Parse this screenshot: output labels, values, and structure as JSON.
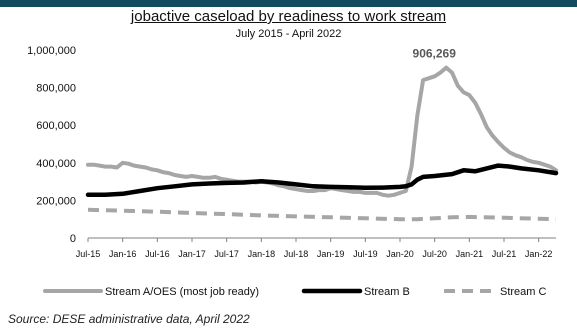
{
  "chart_data": {
    "type": "line",
    "title": "jobactive caseload by readiness to work stream",
    "subtitle": "July 2015 - April 2022",
    "ylim": [
      0,
      1000000
    ],
    "y_ticks": [
      "0",
      "200,000",
      "400,000",
      "600,000",
      "800,000",
      "1,000,000"
    ],
    "y_tick_values": [
      0,
      200000,
      400000,
      600000,
      800000,
      1000000
    ],
    "x_ticks": [
      "Jul-15",
      "Jan-16",
      "Jul-16",
      "Jan-17",
      "Jul-17",
      "Jan-18",
      "Jul-18",
      "Jan-19",
      "Jul-19",
      "Jan-20",
      "Jul-20",
      "Jan-21",
      "Jul-21",
      "Jan-22"
    ],
    "x_range": [
      "2015-07",
      "2022-04"
    ],
    "grid": false,
    "legend_position": "bottom",
    "annotation": {
      "text": "906,269",
      "x": "2020-09",
      "value": 906269
    },
    "series": [
      {
        "name": "Stream A/OES (most job ready)",
        "color": "#a6a6a6",
        "style": "solid",
        "points": [
          [
            "2015-07",
            390000
          ],
          [
            "2015-08",
            390000
          ],
          [
            "2015-09",
            385000
          ],
          [
            "2015-10",
            380000
          ],
          [
            "2015-11",
            380000
          ],
          [
            "2015-12",
            375000
          ],
          [
            "2016-01",
            400000
          ],
          [
            "2016-02",
            395000
          ],
          [
            "2016-03",
            385000
          ],
          [
            "2016-04",
            380000
          ],
          [
            "2016-05",
            375000
          ],
          [
            "2016-06",
            365000
          ],
          [
            "2016-07",
            360000
          ],
          [
            "2016-08",
            350000
          ],
          [
            "2016-09",
            345000
          ],
          [
            "2016-10",
            335000
          ],
          [
            "2016-11",
            330000
          ],
          [
            "2016-12",
            325000
          ],
          [
            "2017-01",
            330000
          ],
          [
            "2017-02",
            325000
          ],
          [
            "2017-03",
            320000
          ],
          [
            "2017-04",
            320000
          ],
          [
            "2017-05",
            325000
          ],
          [
            "2017-06",
            315000
          ],
          [
            "2017-07",
            310000
          ],
          [
            "2017-08",
            305000
          ],
          [
            "2017-09",
            300000
          ],
          [
            "2017-10",
            300000
          ],
          [
            "2017-11",
            300000
          ],
          [
            "2017-12",
            295000
          ],
          [
            "2018-01",
            300000
          ],
          [
            "2018-02",
            295000
          ],
          [
            "2018-03",
            290000
          ],
          [
            "2018-04",
            280000
          ],
          [
            "2018-05",
            275000
          ],
          [
            "2018-06",
            265000
          ],
          [
            "2018-07",
            260000
          ],
          [
            "2018-08",
            255000
          ],
          [
            "2018-09",
            250000
          ],
          [
            "2018-10",
            250000
          ],
          [
            "2018-11",
            255000
          ],
          [
            "2018-12",
            255000
          ],
          [
            "2019-01",
            265000
          ],
          [
            "2019-02",
            260000
          ],
          [
            "2019-03",
            255000
          ],
          [
            "2019-04",
            250000
          ],
          [
            "2019-05",
            245000
          ],
          [
            "2019-06",
            245000
          ],
          [
            "2019-07",
            240000
          ],
          [
            "2019-08",
            240000
          ],
          [
            "2019-09",
            240000
          ],
          [
            "2019-10",
            230000
          ],
          [
            "2019-11",
            225000
          ],
          [
            "2019-12",
            230000
          ],
          [
            "2020-01",
            240000
          ],
          [
            "2020-02",
            250000
          ],
          [
            "2020-03",
            380000
          ],
          [
            "2020-04",
            650000
          ],
          [
            "2020-05",
            840000
          ],
          [
            "2020-06",
            850000
          ],
          [
            "2020-07",
            860000
          ],
          [
            "2020-08",
            880000
          ],
          [
            "2020-09",
            906269
          ],
          [
            "2020-10",
            880000
          ],
          [
            "2020-11",
            810000
          ],
          [
            "2020-12",
            775000
          ],
          [
            "2021-01",
            760000
          ],
          [
            "2021-02",
            720000
          ],
          [
            "2021-03",
            660000
          ],
          [
            "2021-04",
            590000
          ],
          [
            "2021-05",
            545000
          ],
          [
            "2021-06",
            510000
          ],
          [
            "2021-07",
            480000
          ],
          [
            "2021-08",
            455000
          ],
          [
            "2021-09",
            440000
          ],
          [
            "2021-10",
            430000
          ],
          [
            "2021-11",
            415000
          ],
          [
            "2021-12",
            405000
          ],
          [
            "2022-01",
            400000
          ],
          [
            "2022-02",
            390000
          ],
          [
            "2022-03",
            380000
          ],
          [
            "2022-04",
            360000
          ]
        ]
      },
      {
        "name": "Stream B",
        "color": "#000000",
        "style": "solid",
        "points": [
          [
            "2015-07",
            230000
          ],
          [
            "2015-10",
            230000
          ],
          [
            "2016-01",
            235000
          ],
          [
            "2016-04",
            250000
          ],
          [
            "2016-07",
            265000
          ],
          [
            "2016-10",
            275000
          ],
          [
            "2017-01",
            285000
          ],
          [
            "2017-04",
            290000
          ],
          [
            "2017-07",
            293000
          ],
          [
            "2017-10",
            295000
          ],
          [
            "2018-01",
            302000
          ],
          [
            "2018-04",
            295000
          ],
          [
            "2018-07",
            285000
          ],
          [
            "2018-10",
            275000
          ],
          [
            "2019-01",
            272000
          ],
          [
            "2019-04",
            270000
          ],
          [
            "2019-07",
            267000
          ],
          [
            "2019-10",
            268000
          ],
          [
            "2020-01",
            272000
          ],
          [
            "2020-02",
            275000
          ],
          [
            "2020-03",
            285000
          ],
          [
            "2020-04",
            310000
          ],
          [
            "2020-05",
            325000
          ],
          [
            "2020-07",
            330000
          ],
          [
            "2020-10",
            340000
          ],
          [
            "2020-12",
            360000
          ],
          [
            "2021-02",
            355000
          ],
          [
            "2021-04",
            370000
          ],
          [
            "2021-06",
            385000
          ],
          [
            "2021-08",
            380000
          ],
          [
            "2021-10",
            370000
          ],
          [
            "2022-01",
            360000
          ],
          [
            "2022-04",
            345000
          ]
        ]
      },
      {
        "name": "Stream C",
        "color": "#a6a6a6",
        "style": "dashed",
        "points": [
          [
            "2015-07",
            150000
          ],
          [
            "2016-01",
            145000
          ],
          [
            "2016-07",
            140000
          ],
          [
            "2017-01",
            133000
          ],
          [
            "2017-07",
            127000
          ],
          [
            "2018-01",
            120000
          ],
          [
            "2018-07",
            115000
          ],
          [
            "2019-01",
            110000
          ],
          [
            "2019-07",
            105000
          ],
          [
            "2020-01",
            100000
          ],
          [
            "2020-04",
            100000
          ],
          [
            "2020-07",
            105000
          ],
          [
            "2020-10",
            110000
          ],
          [
            "2021-01",
            112000
          ],
          [
            "2021-07",
            108000
          ],
          [
            "2022-01",
            102000
          ],
          [
            "2022-04",
            100000
          ]
        ]
      }
    ]
  },
  "source": "Source: DESE administrative data, April 2022"
}
